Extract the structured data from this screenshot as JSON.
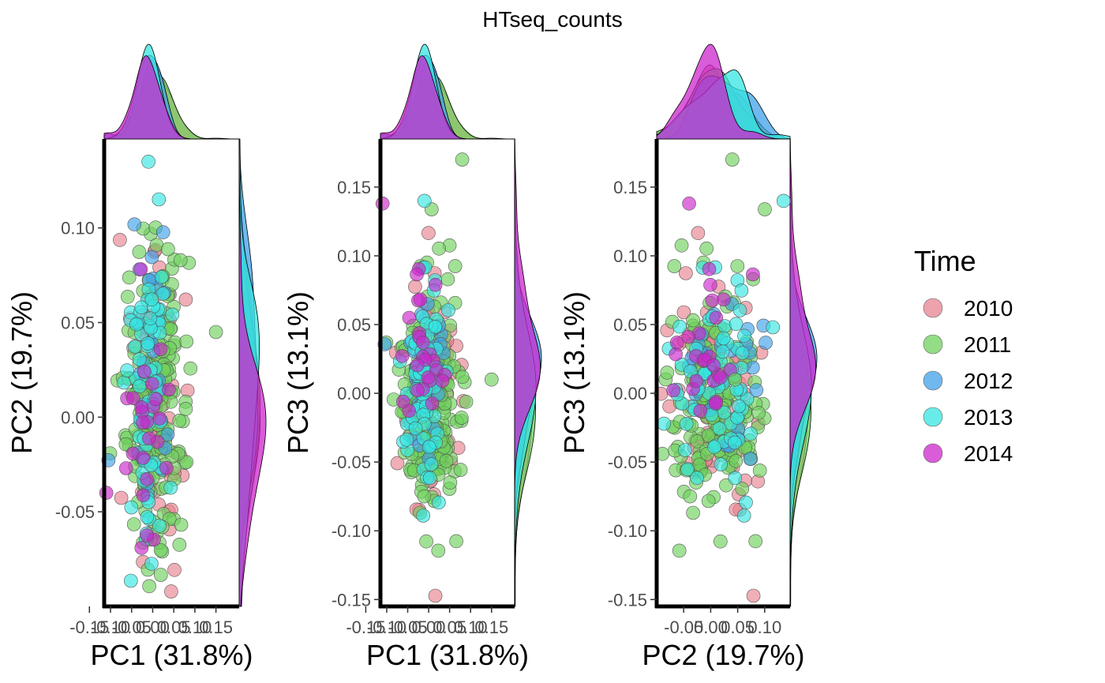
{
  "title": "HTseq_counts",
  "legend": {
    "title": "Time",
    "placement": "right",
    "entries": [
      {
        "label": "2010",
        "color": "#e8838f"
      },
      {
        "label": "2011",
        "color": "#6ed15c"
      },
      {
        "label": "2012",
        "color": "#3fa2ea"
      },
      {
        "label": "2013",
        "color": "#36e6e2"
      },
      {
        "label": "2014",
        "color": "#cc26cc"
      }
    ]
  },
  "chart_data": [
    {
      "type": "scatter",
      "xlabel": "PC1 (31.8%)",
      "ylabel": "PC2 (19.7%)",
      "xlim": [
        -0.115,
        0.205
      ],
      "ylim": [
        -0.1,
        0.147
      ],
      "xticks": [
        "-0.15",
        "-0.10",
        "-0.05",
        "0.00",
        "0.05",
        "0.10",
        "0.15"
      ],
      "yticks": [
        "-0.05",
        "0.00",
        "0.05",
        "0.10"
      ],
      "marginal": "density",
      "grid": false
    },
    {
      "type": "scatter",
      "xlabel": "PC1 (31.8%)",
      "ylabel": "PC3 (13.1%)",
      "xlim": [
        -0.115,
        0.205
      ],
      "ylim": [
        -0.155,
        0.185
      ],
      "xticks": [
        "-0.15",
        "-0.10",
        "-0.05",
        "0.00",
        "0.05",
        "0.10",
        "0.15"
      ],
      "yticks": [
        "-0.15",
        "-0.10",
        "-0.05",
        "0.00",
        "0.05",
        "0.10",
        "0.15"
      ],
      "marginal": "density",
      "grid": false
    },
    {
      "type": "scatter",
      "xlabel": "PC2 (19.7%)",
      "ylabel": "PC3 (13.1%)",
      "xlim": [
        -0.1,
        0.147
      ],
      "ylim": [
        -0.155,
        0.185
      ],
      "xticks": [
        "-0.05",
        "0.00",
        "0.05",
        "0.10"
      ],
      "xtick_labels": [
        "-0.05",
        "0.00",
        "0.05",
        "0.10"
      ],
      "yticks": [
        "-0.15",
        "-0.10",
        "-0.05",
        "0.00",
        "0.05",
        "0.10",
        "0.15"
      ],
      "marginal": "density",
      "grid": false
    }
  ]
}
